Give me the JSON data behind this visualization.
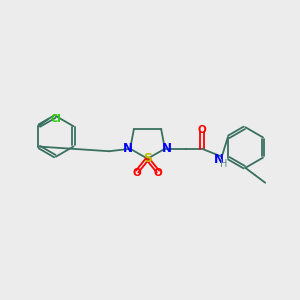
{
  "background_color": "#ececec",
  "bond_color": "#3a7060",
  "N_color": "#0000ff",
  "S_color": "#bbbb00",
  "O_color": "#ff0000",
  "Cl_color": "#22cc00",
  "NH_color": "#5a8888",
  "figsize": [
    3.0,
    3.0
  ],
  "dpi": 100,
  "xlim": [
    0,
    12
  ],
  "ylim": [
    0,
    10
  ]
}
